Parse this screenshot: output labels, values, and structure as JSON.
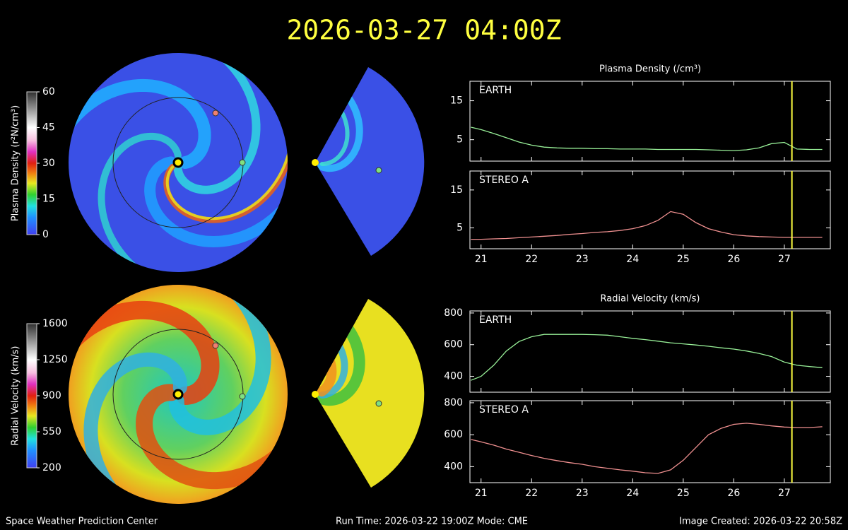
{
  "header": {
    "title": "2026-03-27  04:00Z"
  },
  "footer": {
    "left": "Space Weather Prediction Center",
    "center": "Run Time: 2026-03-22 19:00Z  Mode: CME",
    "right": "Image Created: 2026-03-22 20:58Z"
  },
  "colorbars": [
    {
      "label": "Plasma Density (r²N/cm³)",
      "ylim": [
        0,
        60
      ],
      "yticks": [
        0,
        15,
        30,
        45,
        60
      ]
    },
    {
      "label": "Radial Velocity (km/s)",
      "ylim": [
        200,
        1600
      ],
      "yticks": [
        200,
        550,
        900,
        1250,
        1600
      ]
    }
  ],
  "chart_data": [
    {
      "type": "line",
      "title": "Plasma Density (/cm³)",
      "panel_label": "EARTH",
      "xlim": [
        20.78,
        27.91
      ],
      "ylim": [
        -0.5,
        20
      ],
      "yticks": [
        5,
        15
      ],
      "marker_x": 27.15,
      "x": [
        20.8,
        21,
        21.25,
        21.5,
        21.75,
        22,
        22.25,
        22.5,
        22.75,
        23,
        23.25,
        23.5,
        23.75,
        24,
        24.25,
        24.5,
        24.75,
        25,
        25.25,
        25.5,
        25.75,
        26,
        26.25,
        26.5,
        26.75,
        27,
        27.25,
        27.5,
        27.75
      ],
      "series": [
        {
          "name": "EARTH",
          "color": "#98f098",
          "values": [
            8.2,
            7.6,
            6.6,
            5.5,
            4.4,
            3.6,
            3.1,
            2.9,
            2.8,
            2.8,
            2.7,
            2.7,
            2.6,
            2.6,
            2.6,
            2.5,
            2.5,
            2.5,
            2.5,
            2.4,
            2.3,
            2.2,
            2.4,
            2.9,
            4.0,
            4.3,
            2.6,
            2.5,
            2.5
          ]
        }
      ]
    },
    {
      "type": "line",
      "panel_label": "STEREO A",
      "xlim": [
        20.78,
        27.91
      ],
      "ylim": [
        -0.5,
        20
      ],
      "yticks": [
        5,
        15
      ],
      "xticks": [
        21,
        22,
        23,
        24,
        25,
        26,
        27
      ],
      "marker_x": 27.15,
      "x": [
        20.8,
        21,
        21.25,
        21.5,
        21.75,
        22,
        22.25,
        22.5,
        22.75,
        23,
        23.25,
        23.5,
        23.75,
        24,
        24.25,
        24.5,
        24.75,
        25,
        25.25,
        25.5,
        25.75,
        26,
        26.25,
        26.5,
        26.75,
        27,
        27.25,
        27.5,
        27.75
      ],
      "series": [
        {
          "name": "STEREO A",
          "color": "#f09090",
          "values": [
            2.0,
            2.0,
            2.1,
            2.2,
            2.4,
            2.6,
            2.8,
            3.0,
            3.3,
            3.5,
            3.8,
            4.0,
            4.3,
            4.8,
            5.6,
            7.0,
            9.3,
            8.6,
            6.4,
            4.8,
            3.9,
            3.2,
            2.9,
            2.7,
            2.6,
            2.5,
            2.5,
            2.5,
            2.5
          ]
        }
      ]
    },
    {
      "type": "line",
      "title": "Radial Velocity (km/s)",
      "panel_label": "EARTH",
      "xlim": [
        20.78,
        27.91
      ],
      "ylim": [
        300,
        813
      ],
      "yticks": [
        400,
        600,
        800
      ],
      "marker_x": 27.15,
      "x": [
        20.8,
        21,
        21.25,
        21.5,
        21.75,
        22,
        22.25,
        22.5,
        22.75,
        23,
        23.25,
        23.5,
        23.75,
        24,
        24.25,
        24.5,
        24.75,
        25,
        25.25,
        25.5,
        25.75,
        26,
        26.25,
        26.5,
        26.75,
        27,
        27.25,
        27.5,
        27.75
      ],
      "series": [
        {
          "name": "EARTH",
          "color": "#98f098",
          "values": [
            375,
            400,
            470,
            560,
            620,
            650,
            665,
            665,
            665,
            665,
            663,
            660,
            650,
            640,
            632,
            622,
            612,
            605,
            598,
            590,
            580,
            572,
            560,
            545,
            525,
            490,
            470,
            462,
            455
          ]
        }
      ]
    },
    {
      "type": "line",
      "panel_label": "STEREO A",
      "xlim": [
        20.78,
        27.91
      ],
      "ylim": [
        300,
        813
      ],
      "yticks": [
        400,
        600,
        800
      ],
      "xticks": [
        21,
        22,
        23,
        24,
        25,
        26,
        27
      ],
      "marker_x": 27.15,
      "x": [
        20.8,
        21,
        21.25,
        21.5,
        21.75,
        22,
        22.25,
        22.5,
        22.75,
        23,
        23.25,
        23.5,
        23.75,
        24,
        24.25,
        24.5,
        24.75,
        25,
        25.25,
        25.5,
        25.75,
        26,
        26.25,
        26.5,
        26.75,
        27,
        27.25,
        27.5,
        27.75
      ],
      "series": [
        {
          "name": "STEREO A",
          "color": "#f09090",
          "values": [
            570,
            555,
            535,
            510,
            490,
            470,
            452,
            438,
            425,
            415,
            400,
            390,
            380,
            372,
            362,
            358,
            380,
            440,
            520,
            600,
            640,
            665,
            672,
            665,
            655,
            648,
            645,
            645,
            650
          ]
        }
      ]
    }
  ]
}
